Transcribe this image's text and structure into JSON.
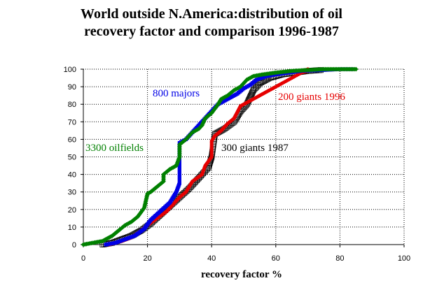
{
  "chart_data": {
    "type": "scatter",
    "title_line1": "World outside N.America:distribution of oil",
    "title_line2": "recovery factor and comparison 1996-1987",
    "xlabel": "recovery factor %",
    "ylabel": "",
    "xlim": [
      0,
      100
    ],
    "ylim": [
      0,
      100
    ],
    "x_ticks": [
      "0",
      "20",
      "40",
      "60",
      "80",
      "100"
    ],
    "y_ticks": [
      "0",
      "10",
      "20",
      "30",
      "40",
      "50",
      "60",
      "70",
      "80",
      "90",
      "100"
    ],
    "grid": "horizontal",
    "legend": "none",
    "series": [
      {
        "name": "300 giants 1987",
        "color": "#000000",
        "points": [
          [
            6,
            0
          ],
          [
            9,
            1
          ],
          [
            12,
            3
          ],
          [
            15,
            5
          ],
          [
            18,
            8
          ],
          [
            21,
            12
          ],
          [
            24,
            17
          ],
          [
            27,
            22
          ],
          [
            30,
            27
          ],
          [
            33,
            32
          ],
          [
            36,
            38
          ],
          [
            39,
            44
          ],
          [
            40,
            50
          ],
          [
            41,
            63
          ],
          [
            44,
            66
          ],
          [
            47,
            70
          ],
          [
            49,
            76
          ],
          [
            51,
            80
          ],
          [
            52,
            84
          ],
          [
            53,
            88
          ],
          [
            55,
            92
          ],
          [
            58,
            95
          ],
          [
            62,
            97
          ],
          [
            66,
            98
          ],
          [
            70,
            99
          ],
          [
            74,
            99.5
          ]
        ]
      },
      {
        "name": "200  giants 1996",
        "color": "#e60000",
        "points": [
          [
            8,
            0
          ],
          [
            10,
            1
          ],
          [
            12,
            2
          ],
          [
            15,
            4
          ],
          [
            18,
            8
          ],
          [
            20,
            11
          ],
          [
            23,
            15
          ],
          [
            26,
            19
          ],
          [
            28,
            23
          ],
          [
            30,
            27
          ],
          [
            32,
            30
          ],
          [
            34,
            36
          ],
          [
            37,
            40
          ],
          [
            38,
            45
          ],
          [
            40,
            50
          ],
          [
            40,
            59
          ],
          [
            41,
            62
          ],
          [
            43,
            65
          ],
          [
            45,
            69
          ],
          [
            47,
            72
          ],
          [
            49,
            79
          ],
          [
            52,
            82
          ],
          [
            55,
            85
          ],
          [
            58,
            88
          ],
          [
            60,
            90
          ],
          [
            62,
            92
          ],
          [
            64,
            94
          ],
          [
            66,
            96
          ],
          [
            68,
            98
          ],
          [
            70,
            99
          ],
          [
            70,
            100
          ]
        ]
      },
      {
        "name": "800 majors",
        "color": "#0000e6",
        "points": [
          [
            7,
            0
          ],
          [
            10,
            1
          ],
          [
            13,
            3
          ],
          [
            16,
            5
          ],
          [
            19,
            9
          ],
          [
            21,
            14
          ],
          [
            24,
            19
          ],
          [
            27,
            24
          ],
          [
            29,
            30
          ],
          [
            30,
            35
          ],
          [
            30,
            47
          ],
          [
            30,
            58
          ],
          [
            32,
            60
          ],
          [
            34,
            64
          ],
          [
            36,
            68
          ],
          [
            38,
            72
          ],
          [
            40,
            76
          ],
          [
            42,
            80
          ],
          [
            45,
            83
          ],
          [
            48,
            86
          ],
          [
            50,
            89
          ],
          [
            52,
            91
          ],
          [
            54,
            94
          ],
          [
            57,
            96
          ],
          [
            60,
            97
          ],
          [
            64,
            98
          ],
          [
            68,
            99
          ],
          [
            72,
            99.3
          ],
          [
            76,
            99.6
          ],
          [
            80,
            100
          ],
          [
            84,
            100
          ]
        ]
      },
      {
        "name": "3300 oilfields",
        "color": "#008000",
        "points": [
          [
            0,
            0
          ],
          [
            3,
            1
          ],
          [
            6,
            2
          ],
          [
            9,
            5
          ],
          [
            11,
            8
          ],
          [
            13,
            11
          ],
          [
            15,
            13
          ],
          [
            17,
            16
          ],
          [
            19,
            21
          ],
          [
            20,
            29
          ],
          [
            21,
            30
          ],
          [
            23,
            33
          ],
          [
            25,
            36
          ],
          [
            25,
            40
          ],
          [
            27,
            43
          ],
          [
            29,
            45
          ],
          [
            30,
            50
          ],
          [
            30,
            57
          ],
          [
            32,
            60
          ],
          [
            34,
            64
          ],
          [
            36,
            66
          ],
          [
            37,
            68
          ],
          [
            38,
            72
          ],
          [
            40,
            75
          ],
          [
            42,
            80
          ],
          [
            43,
            83
          ],
          [
            45,
            85
          ],
          [
            47,
            88
          ],
          [
            49,
            90
          ],
          [
            51,
            94
          ],
          [
            53,
            96
          ],
          [
            56,
            97
          ],
          [
            60,
            98
          ],
          [
            65,
            99
          ],
          [
            70,
            99.5
          ],
          [
            75,
            100
          ],
          [
            80,
            100
          ],
          [
            85,
            100
          ]
        ]
      }
    ],
    "annotations": [
      {
        "text": "800 majors",
        "color": "#0000e6"
      },
      {
        "text": "200  giants 1996",
        "color": "#e60000"
      },
      {
        "text": "3300 oilfields",
        "color": "#008000"
      },
      {
        "text": "300 giants 1987",
        "color": "#000000"
      }
    ]
  }
}
